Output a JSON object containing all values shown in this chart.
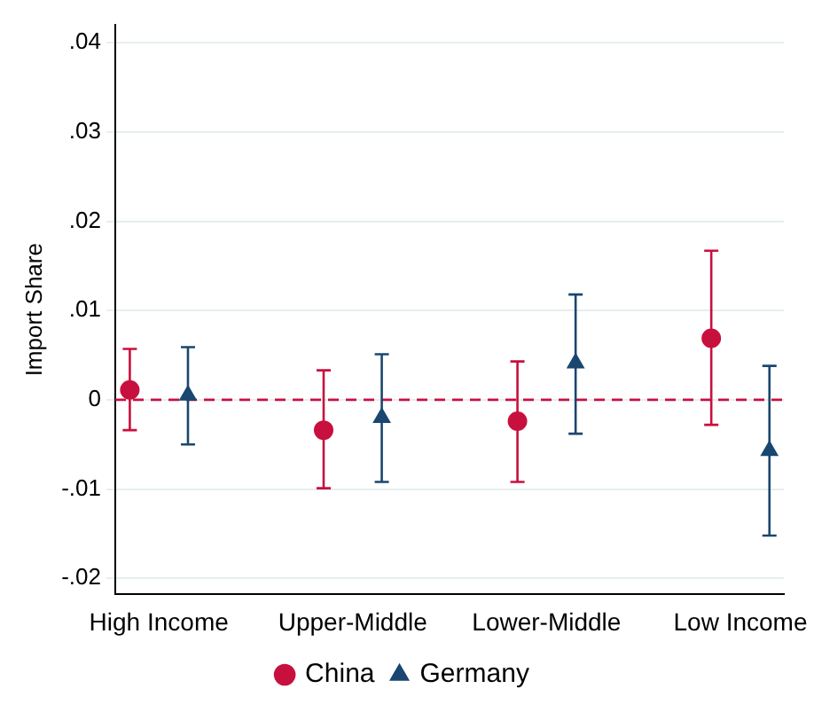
{
  "chart_data": {
    "type": "scatter",
    "ylabel": "Import Share",
    "categories": [
      "High Income",
      "Upper-Middle",
      "Lower-Middle",
      "Low Income"
    ],
    "series": [
      {
        "name": "China",
        "color": "#c8103e",
        "marker": "circle",
        "values": [
          0.0011,
          -0.0034,
          -0.0024,
          0.0069
        ],
        "errors": [
          [
            -0.0034,
            0.0057
          ],
          [
            -0.0099,
            0.0033
          ],
          [
            -0.0092,
            0.0043
          ],
          [
            -0.0028,
            0.0167
          ]
        ]
      },
      {
        "name": "Germany",
        "color": "#1a476f",
        "marker": "triangle",
        "values": [
          0.0005,
          -0.002,
          0.0041,
          -0.0057
        ],
        "errors": [
          [
            -0.005,
            0.0059
          ],
          [
            -0.0092,
            0.0051
          ],
          [
            -0.0038,
            0.0118
          ],
          [
            -0.0152,
            0.0038
          ]
        ]
      }
    ],
    "ylim": [
      -0.0218,
      0.042
    ],
    "yticks": [
      {
        "value": -0.02,
        "label": "-.02"
      },
      {
        "value": -0.01,
        "label": "-.01"
      },
      0,
      {
        "value": 0.01,
        "label": ".01"
      },
      {
        "value": 0.02,
        "label": ".02"
      },
      {
        "value": 0.03,
        "label": ".03"
      },
      {
        "value": 0.04,
        "label": ".04"
      }
    ],
    "ref_lines": [
      {
        "axis": "y",
        "value": 0,
        "color": "#c8103e",
        "line_style": "dashed"
      }
    ],
    "grid": "y",
    "legend": "bottom"
  }
}
